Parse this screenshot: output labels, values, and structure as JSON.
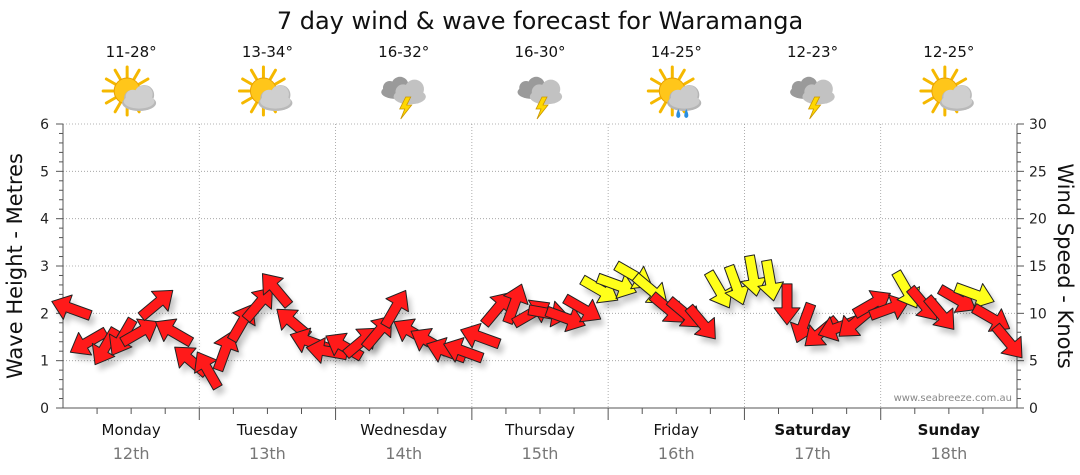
{
  "colors": {
    "strong_wind": "#ff1a1a",
    "moderate_wind": "#ffff1a",
    "arrow_outline": "#222222",
    "grid": "#9a9a9a",
    "date_text": "#777777"
  },
  "chart_data": {
    "type": "scatter",
    "title": "7 day wind & wave forecast for Waramanga",
    "ylabel_left": "Wave Height - Metres",
    "ylabel_right": "Wind Speed - Knots",
    "y_left_range": [
      0,
      6
    ],
    "y_left_ticks": [
      "0",
      "1",
      "2",
      "3",
      "4",
      "5",
      "6"
    ],
    "y_right_range": [
      0,
      30
    ],
    "y_right_ticks": [
      "0",
      "5",
      "10",
      "15",
      "20",
      "25",
      "30"
    ],
    "credit": "www.seabreeze.com.au",
    "days": [
      {
        "name": "Monday",
        "date": "12th",
        "temp": "11-28°",
        "weather": "partly-cloudy",
        "bold": false
      },
      {
        "name": "Tuesday",
        "date": "13th",
        "temp": "13-34°",
        "weather": "partly-cloudy",
        "bold": false
      },
      {
        "name": "Wednesday",
        "date": "14th",
        "temp": "16-32°",
        "weather": "storm",
        "bold": false
      },
      {
        "name": "Thursday",
        "date": "15th",
        "temp": "16-30°",
        "weather": "storm",
        "bold": false
      },
      {
        "name": "Friday",
        "date": "16th",
        "temp": "14-25°",
        "weather": "showers",
        "bold": false
      },
      {
        "name": "Saturday",
        "date": "17th",
        "temp": "12-23°",
        "weather": "storm",
        "bold": true
      },
      {
        "name": "Sunday",
        "date": "18th",
        "temp": "12-25°",
        "weather": "partly-cloudy",
        "bold": true
      }
    ],
    "series": [
      {
        "name": "Wind Speed (knots)",
        "x_hours": [
          0,
          3,
          6,
          9,
          12,
          15,
          18,
          21,
          24,
          27,
          30,
          33,
          36,
          39,
          42,
          45,
          48,
          51,
          54,
          57,
          60,
          63,
          66,
          69,
          72,
          75,
          78,
          81,
          84,
          87,
          90,
          93,
          96,
          99,
          102,
          105,
          108,
          111,
          114,
          117,
          120,
          123,
          126,
          129,
          132,
          135,
          138,
          141,
          144,
          147,
          150,
          153,
          156,
          159,
          162,
          165
        ],
        "speed_knots": [
          10.5,
          7,
          6.5,
          7.5,
          8,
          11,
          8,
          5,
          4,
          6,
          9,
          11,
          12.5,
          9,
          7,
          6,
          6.5,
          7,
          8,
          10.5,
          8,
          7,
          6,
          6,
          7.5,
          10.5,
          11,
          10,
          10,
          9.5,
          10.5,
          12.5,
          13,
          14,
          12.5,
          10.5,
          10,
          9,
          12.5,
          13,
          14,
          13.5,
          11,
          9,
          8,
          8.5,
          9,
          11,
          10.5,
          12.5,
          11,
          10,
          11.5,
          12,
          9.5,
          7
        ],
        "direction_deg": [
          290,
          240,
          210,
          210,
          60,
          50,
          300,
          310,
          330,
          20,
          30,
          40,
          320,
          310,
          290,
          280,
          300,
          50,
          40,
          30,
          300,
          300,
          290,
          290,
          290,
          40,
          20,
          60,
          100,
          110,
          120,
          120,
          110,
          120,
          130,
          130,
          130,
          140,
          150,
          160,
          170,
          170,
          180,
          200,
          230,
          250,
          230,
          60,
          70,
          150,
          140,
          140,
          120,
          110,
          120,
          140
        ]
      }
    ]
  }
}
